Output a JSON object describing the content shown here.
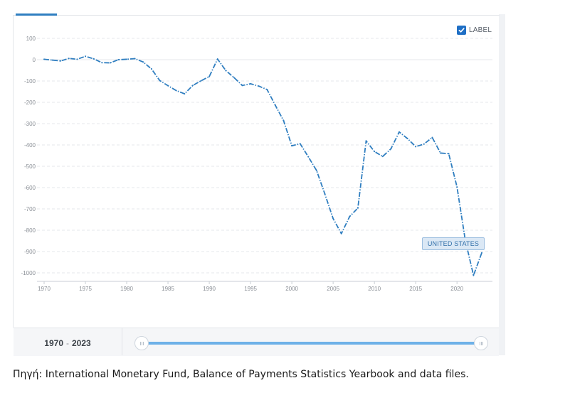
{
  "controls": {
    "label_toggle_text": "LABEL",
    "label_checked": true
  },
  "series_tag": "UNITED STATES",
  "range": {
    "start": "1970",
    "end": "2023",
    "separator": "-"
  },
  "source_note": "Πηγή: International Monetary Fund, Balance of Payments Statistics Yearbook and data files.",
  "colors": {
    "line": "#2f7ec0",
    "grid": "#e4e7eb",
    "accent": "#1f6fc5"
  },
  "chart_data": {
    "type": "line",
    "title": "",
    "xlabel": "",
    "ylabel": "",
    "xlim": [
      1970,
      2023
    ],
    "ylim": [
      -1000,
      100
    ],
    "y_ticks": [
      100,
      0,
      -100,
      -200,
      -300,
      -400,
      -500,
      -600,
      -700,
      -800,
      -900,
      -1000
    ],
    "x_ticks": [
      1970,
      1975,
      1980,
      1985,
      1990,
      1995,
      2000,
      2005,
      2010,
      2015,
      2020
    ],
    "grid": true,
    "line_style": "dash-dot",
    "series": [
      {
        "name": "UNITED STATES",
        "x": [
          1970,
          1971,
          1972,
          1973,
          1974,
          1975,
          1976,
          1977,
          1978,
          1979,
          1980,
          1981,
          1982,
          1983,
          1984,
          1985,
          1986,
          1987,
          1988,
          1989,
          1990,
          1991,
          1992,
          1993,
          1994,
          1995,
          1996,
          1997,
          1998,
          1999,
          2000,
          2001,
          2002,
          2003,
          2004,
          2005,
          2006,
          2007,
          2008,
          2009,
          2010,
          2011,
          2012,
          2013,
          2014,
          2015,
          2016,
          2017,
          2018,
          2019,
          2020,
          2021,
          2022,
          2023
        ],
        "y": [
          2,
          -2,
          -6,
          6,
          2,
          16,
          4,
          -14,
          -15,
          0,
          2,
          5,
          -11,
          -43,
          -98,
          -122,
          -145,
          -160,
          -121,
          -99,
          -79,
          3,
          -51,
          -84,
          -121,
          -113,
          -124,
          -140,
          -214,
          -286,
          -404,
          -394,
          -456,
          -520,
          -630,
          -745,
          -816,
          -736,
          -696,
          -381,
          -431,
          -454,
          -418,
          -339,
          -370,
          -408,
          -396,
          -365,
          -438,
          -441,
          -597,
          -846,
          -1012,
          -906
        ]
      }
    ]
  }
}
